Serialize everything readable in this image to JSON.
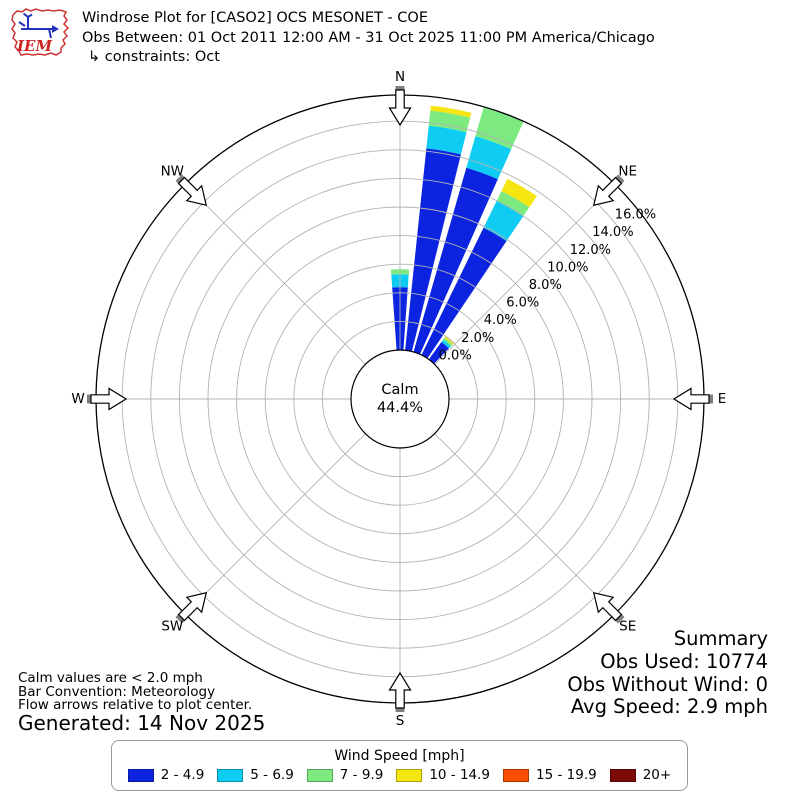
{
  "header": {
    "title": "Windrose Plot for [CASO2] OCS MESONET - COE",
    "subtitle": "Obs Between: 01 Oct 2011 12:00 AM - 31 Oct 2025 11:00 PM America/Chicago",
    "constraints": "↳ constraints: Oct",
    "logo_text": "IEM"
  },
  "chart_data": {
    "type": "windrose",
    "units": "% frequency of observations",
    "direction_convention": "Meteorology (bars point from direction wind blows, 0 = N)",
    "sector_width_deg": 10,
    "bar_half_angle_deg": 4,
    "rings_percent": [
      0,
      2,
      4,
      6,
      8,
      10,
      12,
      14,
      16
    ],
    "rmax_percent": 17.83,
    "ring_label_azimuth_deg": 52,
    "calm": {
      "label": "Calm",
      "value_label": "44.4%",
      "percent": 44.4
    },
    "compass": [
      {
        "az": 0,
        "label": "N"
      },
      {
        "az": 45,
        "label": "NE"
      },
      {
        "az": 90,
        "label": "E"
      },
      {
        "az": 135,
        "label": "SE"
      },
      {
        "az": 180,
        "label": "S"
      },
      {
        "az": 225,
        "label": "SW"
      },
      {
        "az": 270,
        "label": "W"
      },
      {
        "az": 315,
        "label": "NW"
      }
    ],
    "speed_bins": [
      {
        "label": "2 - 4.9",
        "color": "#0c24e0"
      },
      {
        "label": "5 - 6.9",
        "color": "#0fcdf2"
      },
      {
        "label": "7 - 9.9",
        "color": "#7cea81"
      },
      {
        "label": "10 - 14.9",
        "color": "#f5e511"
      },
      {
        "label": "15 - 19.9",
        "color": "#f84e05"
      },
      {
        "label": "20+",
        "color": "#7c0a06"
      }
    ],
    "bars": [
      {
        "dir_deg": 0,
        "segments": [
          4.4,
          0.9,
          0.35,
          0.0,
          0,
          0
        ]
      },
      {
        "dir_deg": 10,
        "segments": [
          14.2,
          1.6,
          1.05,
          0.35,
          0,
          0
        ]
      },
      {
        "dir_deg": 20,
        "segments": [
          13.4,
          2.3,
          2.1,
          0.0,
          0,
          0
        ]
      },
      {
        "dir_deg": 30,
        "segments": [
          9.9,
          2.1,
          0.75,
          0.95,
          0,
          0
        ]
      },
      {
        "dir_deg": 40,
        "segments": [
          1.5,
          0.2,
          0.17,
          0.16,
          0,
          0
        ]
      }
    ]
  },
  "notes": {
    "line1": "Calm values are < 2.0 mph",
    "line2": "Bar Convention: Meteorology",
    "line3": "Flow arrows relative to plot center.",
    "generated": "Generated: 14 Nov 2025"
  },
  "summary": {
    "title": "Summary",
    "obs_used": "Obs Used: 10774",
    "obs_without_wind": "Obs Without Wind: 0",
    "avg_speed": "Avg Speed: 2.9 mph"
  },
  "legend": {
    "title": "Wind Speed [mph]"
  }
}
